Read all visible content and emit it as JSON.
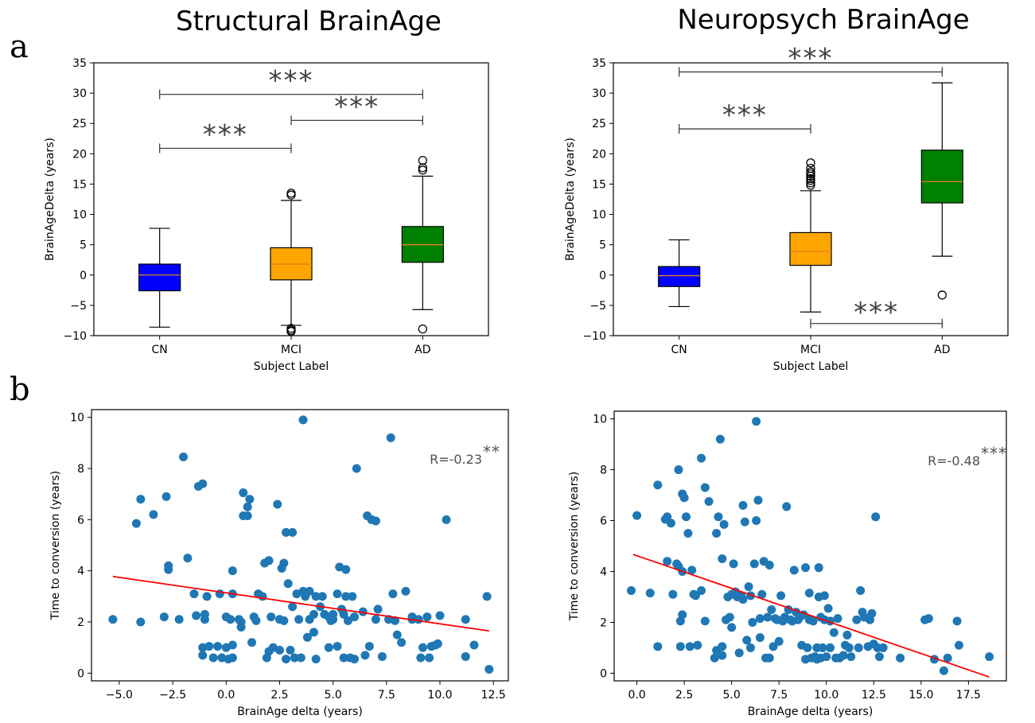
{
  "figure": {
    "label_a": "a",
    "label_b": "b"
  },
  "colors": {
    "CN": "#0000ff",
    "MCI": "#ffa500",
    "AD": "#008000",
    "median": "#e08020",
    "scatter": "#1f77b4",
    "fit": "#ff0000",
    "annotation": "#404040"
  },
  "chart_data": [
    {
      "type": "box",
      "title": "Structural  BrainAge",
      "xlabel": "Subject Label",
      "ylabel": "BrainAgeDelta (years)",
      "ylim": [
        -10,
        35
      ],
      "yticks": [
        -10,
        -5,
        0,
        5,
        10,
        15,
        20,
        25,
        30,
        35
      ],
      "categories": [
        "CN",
        "MCI",
        "AD"
      ],
      "boxes": [
        {
          "name": "CN",
          "whislo": -8.6,
          "q1": -2.6,
          "med": 0.0,
          "q3": 1.8,
          "whishi": 7.7,
          "fliers": []
        },
        {
          "name": "MCI",
          "whislo": -8.3,
          "q1": -0.8,
          "med": 1.8,
          "q3": 4.5,
          "whishi": 12.3,
          "fliers": [
            13.5,
            13.2,
            -8.8,
            -9.1,
            -9.3
          ]
        },
        {
          "name": "AD",
          "whislo": -5.7,
          "q1": 2.1,
          "med": 5.0,
          "q3": 8.0,
          "whishi": 16.3,
          "fliers": [
            17.3,
            17.7,
            18.9,
            -8.9
          ]
        }
      ],
      "significance": [
        {
          "from": "CN",
          "to": "MCI",
          "y": 20.9,
          "label": "***"
        },
        {
          "from": "CN",
          "to": "AD",
          "y": 29.8,
          "label": "***"
        },
        {
          "from": "MCI",
          "to": "AD",
          "y": 25.5,
          "label": "***"
        }
      ]
    },
    {
      "type": "box",
      "title": "Neuropsych  BrainAge",
      "xlabel": "Subject Label",
      "ylabel": "BrainAgeDelta (years)",
      "ylim": [
        -10,
        35
      ],
      "yticks": [
        -10,
        -5,
        0,
        5,
        10,
        15,
        20,
        25,
        30,
        35
      ],
      "categories": [
        "CN",
        "MCI",
        "AD"
      ],
      "boxes": [
        {
          "name": "CN",
          "whislo": -5.2,
          "q1": -1.9,
          "med": -0.1,
          "q3": 1.4,
          "whishi": 5.8,
          "fliers": []
        },
        {
          "name": "MCI",
          "whislo": -6.1,
          "q1": 1.6,
          "med": 3.9,
          "q3": 7.0,
          "whishi": 13.9,
          "fliers": [
            14.8,
            15.2,
            15.6,
            15.9,
            16.3,
            16.7,
            17.0,
            17.6,
            18.5
          ]
        },
        {
          "name": "AD",
          "whislo": 3.1,
          "q1": 11.9,
          "med": 15.4,
          "q3": 20.6,
          "whishi": 31.7,
          "fliers": [
            -3.3
          ]
        }
      ],
      "significance": [
        {
          "from": "CN",
          "to": "MCI",
          "y": 24.1,
          "label": "***"
        },
        {
          "from": "CN",
          "to": "AD",
          "y": 33.5,
          "label": "***"
        },
        {
          "from": "MCI",
          "to": "AD",
          "y": -8.0,
          "label": "***",
          "below": true
        }
      ]
    },
    {
      "type": "scatter",
      "xlabel": "BrainAge delta (years)",
      "ylabel": "Time to conversion (years)",
      "xlim": [
        -6.3,
        13.2
      ],
      "ylim": [
        -0.3,
        10.3
      ],
      "xticks": [
        -5.0,
        -2.5,
        0.0,
        2.5,
        5.0,
        7.5,
        10.0,
        12.5
      ],
      "xticklabels": [
        "−5.0",
        "−2.5",
        "0.0",
        "2.5",
        "5.0",
        "7.5",
        "10.0",
        "12.5"
      ],
      "yticks": [
        0,
        2,
        4,
        6,
        8,
        10
      ],
      "annotation": {
        "text": "R=-0.23",
        "stars": "**"
      },
      "fit": {
        "x": [
          -5.3,
          12.3
        ],
        "y": [
          3.78,
          1.65
        ]
      },
      "points": [
        [
          -5.3,
          2.1
        ],
        [
          -4.2,
          5.85
        ],
        [
          -4.0,
          6.8
        ],
        [
          -4.0,
          2.0
        ],
        [
          -3.4,
          6.2
        ],
        [
          -2.9,
          2.2
        ],
        [
          -2.8,
          6.9
        ],
        [
          -2.7,
          4.2
        ],
        [
          -2.7,
          4.05
        ],
        [
          -2.2,
          2.1
        ],
        [
          -2.0,
          8.45
        ],
        [
          -1.8,
          4.5
        ],
        [
          -1.5,
          3.1
        ],
        [
          -1.4,
          2.25
        ],
        [
          -1.3,
          7.3
        ],
        [
          -1.1,
          7.4
        ],
        [
          -1.1,
          1.0
        ],
        [
          -1.1,
          0.7
        ],
        [
          -1.0,
          2.3
        ],
        [
          -1.0,
          2.1
        ],
        [
          -0.9,
          3.0
        ],
        [
          -0.8,
          1.05
        ],
        [
          -0.6,
          0.6
        ],
        [
          -0.4,
          1.05
        ],
        [
          -0.3,
          3.1
        ],
        [
          -0.2,
          0.6
        ],
        [
          0.0,
          1.0
        ],
        [
          0.0,
          2.2
        ],
        [
          0.1,
          0.55
        ],
        [
          0.2,
          2.1
        ],
        [
          0.3,
          3.1
        ],
        [
          0.3,
          4.0
        ],
        [
          0.3,
          1.1
        ],
        [
          0.3,
          0.6
        ],
        [
          0.6,
          2.1
        ],
        [
          0.7,
          2.0
        ],
        [
          0.7,
          1.8
        ],
        [
          0.8,
          7.05
        ],
        [
          0.8,
          6.15
        ],
        [
          1.0,
          6.5
        ],
        [
          1.0,
          6.15
        ],
        [
          1.1,
          6.8
        ],
        [
          1.2,
          1.2
        ],
        [
          1.3,
          2.2
        ],
        [
          1.4,
          2.05
        ],
        [
          1.5,
          3.1
        ],
        [
          1.7,
          3.0
        ],
        [
          1.8,
          4.3
        ],
        [
          1.9,
          0.6
        ],
        [
          2.0,
          4.4
        ],
        [
          2.0,
          0.85
        ],
        [
          2.1,
          2.2
        ],
        [
          2.2,
          1.0
        ],
        [
          2.4,
          6.6
        ],
        [
          2.5,
          2.1
        ],
        [
          2.5,
          0.9
        ],
        [
          2.6,
          4.1
        ],
        [
          2.7,
          4.3
        ],
        [
          2.7,
          2.05
        ],
        [
          2.8,
          5.5
        ],
        [
          2.8,
          0.55
        ],
        [
          2.9,
          3.5
        ],
        [
          3.0,
          0.9
        ],
        [
          3.1,
          2.6
        ],
        [
          3.1,
          5.5
        ],
        [
          3.2,
          0.6
        ],
        [
          3.3,
          3.1
        ],
        [
          3.4,
          2.1
        ],
        [
          3.5,
          0.6
        ],
        [
          3.6,
          3.2
        ],
        [
          3.6,
          9.9
        ],
        [
          3.7,
          3.0
        ],
        [
          3.8,
          1.4
        ],
        [
          3.9,
          3.2
        ],
        [
          3.9,
          2.1
        ],
        [
          4.1,
          2.3
        ],
        [
          4.1,
          1.6
        ],
        [
          4.2,
          3.0
        ],
        [
          4.2,
          0.55
        ],
        [
          4.4,
          2.6
        ],
        [
          4.5,
          3.0
        ],
        [
          4.6,
          2.3
        ],
        [
          4.8,
          1.0
        ],
        [
          4.8,
          2.2
        ],
        [
          4.9,
          2.05
        ],
        [
          5.0,
          2.3
        ],
        [
          5.0,
          2.1
        ],
        [
          5.2,
          1.05
        ],
        [
          5.2,
          3.1
        ],
        [
          5.3,
          4.15
        ],
        [
          5.4,
          2.5
        ],
        [
          5.5,
          2.3
        ],
        [
          5.5,
          0.6
        ],
        [
          5.6,
          3.0
        ],
        [
          5.6,
          4.05
        ],
        [
          5.7,
          2.05
        ],
        [
          5.8,
          0.6
        ],
        [
          5.9,
          3.0
        ],
        [
          6.0,
          2.2
        ],
        [
          6.0,
          0.55
        ],
        [
          6.1,
          8.0
        ],
        [
          6.4,
          2.4
        ],
        [
          6.5,
          0.7
        ],
        [
          6.6,
          6.15
        ],
        [
          6.7,
          1.05
        ],
        [
          6.8,
          6.0
        ],
        [
          7.0,
          5.95
        ],
        [
          7.0,
          2.1
        ],
        [
          7.1,
          2.5
        ],
        [
          7.3,
          0.65
        ],
        [
          7.6,
          2.1
        ],
        [
          7.7,
          9.2
        ],
        [
          7.8,
          3.1
        ],
        [
          7.9,
          2.05
        ],
        [
          8.0,
          1.5
        ],
        [
          8.2,
          1.2
        ],
        [
          8.4,
          3.2
        ],
        [
          8.7,
          2.2
        ],
        [
          8.7,
          2.1
        ],
        [
          9.0,
          2.1
        ],
        [
          9.1,
          0.6
        ],
        [
          9.2,
          1.0
        ],
        [
          9.4,
          2.2
        ],
        [
          9.5,
          0.6
        ],
        [
          9.6,
          1.05
        ],
        [
          9.8,
          1.1
        ],
        [
          9.9,
          1.15
        ],
        [
          10.0,
          2.25
        ],
        [
          10.3,
          6.0
        ],
        [
          11.2,
          2.1
        ],
        [
          11.2,
          0.65
        ],
        [
          11.6,
          1.1
        ],
        [
          12.2,
          3.0
        ],
        [
          12.3,
          0.15
        ]
      ]
    },
    {
      "type": "scatter",
      "xlabel": "BrainAge delta (years)",
      "ylabel": "Time to conversion (years)",
      "xlim": [
        -1.2,
        19.5
      ],
      "ylim": [
        -0.3,
        10.3
      ],
      "xticks": [
        0.0,
        2.5,
        5.0,
        7.5,
        10.0,
        12.5,
        15.0,
        17.5
      ],
      "xticklabels": [
        "0.0",
        "2.5",
        "5.0",
        "7.5",
        "10.0",
        "12.5",
        "15.0",
        "17.5"
      ],
      "yticks": [
        0,
        2,
        4,
        6,
        8,
        10
      ],
      "annotation": {
        "text": "R=-0.48",
        "stars": "***"
      },
      "fit": {
        "x": [
          -0.2,
          18.6
        ],
        "y": [
          4.67,
          -0.15
        ]
      },
      "points": [
        [
          -0.3,
          3.25
        ],
        [
          0.0,
          6.2
        ],
        [
          0.7,
          3.15
        ],
        [
          1.1,
          7.4
        ],
        [
          1.1,
          1.05
        ],
        [
          1.5,
          6.05
        ],
        [
          1.6,
          6.15
        ],
        [
          1.6,
          4.4
        ],
        [
          1.8,
          5.9
        ],
        [
          1.9,
          3.1
        ],
        [
          2.1,
          4.3
        ],
        [
          2.2,
          4.2
        ],
        [
          2.2,
          8.0
        ],
        [
          2.3,
          2.05
        ],
        [
          2.3,
          1.05
        ],
        [
          2.4,
          7.05
        ],
        [
          2.4,
          4.0
        ],
        [
          2.4,
          2.3
        ],
        [
          2.5,
          6.9
        ],
        [
          2.6,
          6.15
        ],
        [
          2.7,
          5.5
        ],
        [
          2.8,
          1.05
        ],
        [
          2.9,
          4.05
        ],
        [
          3.0,
          3.1
        ],
        [
          3.1,
          3.05
        ],
        [
          3.2,
          1.1
        ],
        [
          3.4,
          8.45
        ],
        [
          3.4,
          3.25
        ],
        [
          3.6,
          7.3
        ],
        [
          3.6,
          2.05
        ],
        [
          3.8,
          6.75
        ],
        [
          4.1,
          0.6
        ],
        [
          4.2,
          0.9
        ],
        [
          4.2,
          5.5
        ],
        [
          4.3,
          6.15
        ],
        [
          4.4,
          9.2
        ],
        [
          4.5,
          4.5
        ],
        [
          4.5,
          0.7
        ],
        [
          4.5,
          1.05
        ],
        [
          4.6,
          5.85
        ],
        [
          4.7,
          2.1
        ],
        [
          4.8,
          3.0
        ],
        [
          4.9,
          2.2
        ],
        [
          5.0,
          1.8
        ],
        [
          5.0,
          3.1
        ],
        [
          5.1,
          4.3
        ],
        [
          5.2,
          3.2
        ],
        [
          5.3,
          3.0
        ],
        [
          5.4,
          0.8
        ],
        [
          5.5,
          3.05
        ],
        [
          5.6,
          6.6
        ],
        [
          5.6,
          2.9
        ],
        [
          5.7,
          5.95
        ],
        [
          5.8,
          1.3
        ],
        [
          5.9,
          3.4
        ],
        [
          6.0,
          3.05
        ],
        [
          6.0,
          1.0
        ],
        [
          6.1,
          2.0
        ],
        [
          6.2,
          4.3
        ],
        [
          6.3,
          9.9
        ],
        [
          6.3,
          6.0
        ],
        [
          6.4,
          6.8
        ],
        [
          6.5,
          2.15
        ],
        [
          6.5,
          1.4
        ],
        [
          6.6,
          3.1
        ],
        [
          6.7,
          4.4
        ],
        [
          6.8,
          0.6
        ],
        [
          6.9,
          2.2
        ],
        [
          7.0,
          0.6
        ],
        [
          7.0,
          4.25
        ],
        [
          7.1,
          2.5
        ],
        [
          7.2,
          1.05
        ],
        [
          7.3,
          2.15
        ],
        [
          7.4,
          2.1
        ],
        [
          7.5,
          1.25
        ],
        [
          7.6,
          3.05
        ],
        [
          7.7,
          2.05
        ],
        [
          7.8,
          2.2
        ],
        [
          7.9,
          6.55
        ],
        [
          8.0,
          2.5
        ],
        [
          8.1,
          2.1
        ],
        [
          8.2,
          2.05
        ],
        [
          8.3,
          4.05
        ],
        [
          8.4,
          2.4
        ],
        [
          8.5,
          2.1
        ],
        [
          8.6,
          2.2
        ],
        [
          8.7,
          1.1
        ],
        [
          8.8,
          2.3
        ],
        [
          8.9,
          0.55
        ],
        [
          8.9,
          4.15
        ],
        [
          9.0,
          1.0
        ],
        [
          9.1,
          3.15
        ],
        [
          9.1,
          2.1
        ],
        [
          9.2,
          0.6
        ],
        [
          9.3,
          2.05
        ],
        [
          9.4,
          0.65
        ],
        [
          9.5,
          1.0
        ],
        [
          9.5,
          0.55
        ],
        [
          9.6,
          4.15
        ],
        [
          9.6,
          3.0
        ],
        [
          9.7,
          0.6
        ],
        [
          9.7,
          2.2
        ],
        [
          9.8,
          1.0
        ],
        [
          9.9,
          3.05
        ],
        [
          9.9,
          2.1
        ],
        [
          10.0,
          0.65
        ],
        [
          10.1,
          2.55
        ],
        [
          10.2,
          1.0
        ],
        [
          10.2,
          2.05
        ],
        [
          10.4,
          1.6
        ],
        [
          10.5,
          0.6
        ],
        [
          10.6,
          2.15
        ],
        [
          10.7,
          0.6
        ],
        [
          10.9,
          0.7
        ],
        [
          11.0,
          1.1
        ],
        [
          11.1,
          1.5
        ],
        [
          11.2,
          1.0
        ],
        [
          11.3,
          0.65
        ],
        [
          11.6,
          2.1
        ],
        [
          11.7,
          1.0
        ],
        [
          11.8,
          3.25
        ],
        [
          11.9,
          2.4
        ],
        [
          12.0,
          2.2
        ],
        [
          12.2,
          1.05
        ],
        [
          12.3,
          2.1
        ],
        [
          12.4,
          2.35
        ],
        [
          12.5,
          1.15
        ],
        [
          12.6,
          6.15
        ],
        [
          12.7,
          1.0
        ],
        [
          12.8,
          0.65
        ],
        [
          13.0,
          1.0
        ],
        [
          13.9,
          0.6
        ],
        [
          15.2,
          2.1
        ],
        [
          15.4,
          2.15
        ],
        [
          15.7,
          0.55
        ],
        [
          16.2,
          0.1
        ],
        [
          16.4,
          0.6
        ],
        [
          16.9,
          2.05
        ],
        [
          17.0,
          1.1
        ],
        [
          18.6,
          0.65
        ]
      ]
    }
  ]
}
